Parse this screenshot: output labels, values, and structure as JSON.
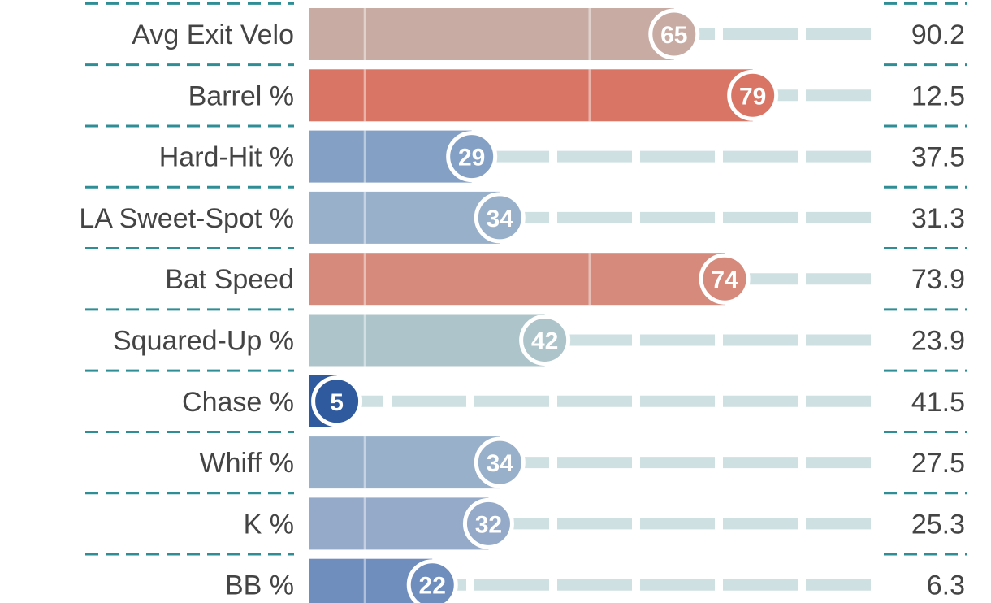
{
  "chart_data": {
    "type": "bar",
    "categories": [
      "Avg Exit Velo",
      "Barrel %",
      "Hard-Hit %",
      "LA Sweet-Spot %",
      "Bat Speed",
      "Squared-Up %",
      "Chase %",
      "Whiff %",
      "K %",
      "BB %"
    ],
    "percentiles": [
      65,
      79,
      29,
      34,
      74,
      42,
      5,
      34,
      32,
      22
    ],
    "stat_values": [
      "90.2",
      "12.5",
      "37.5",
      "31.3",
      "73.9",
      "23.9",
      "41.5",
      "27.5",
      "25.3",
      "6.3"
    ],
    "xlim": [
      0,
      100
    ],
    "bar_colors": [
      "#c8aca4",
      "#d97565",
      "#84a0c4",
      "#98b0ca",
      "#d58a7c",
      "#acc4ca",
      "#2f5a9e",
      "#98b0ca",
      "#94aac8",
      "#6f8dbd"
    ]
  }
}
